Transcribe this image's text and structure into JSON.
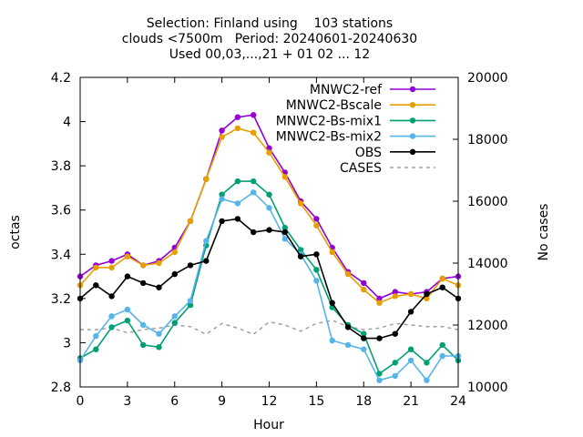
{
  "title_lines": [
    "Selection: Finland using    103 stations",
    "clouds <7500m   Period: 20240601-20240630",
    "Used 00,03,...,21 + 01 02 ... 12"
  ],
  "chart_data": {
    "type": "line",
    "xlabel": "Hour",
    "ylabel": "octas",
    "y2label": "No cases",
    "xlim": [
      0,
      24
    ],
    "ylim": [
      2.8,
      4.2
    ],
    "y2lim": [
      10000,
      20000
    ],
    "xticks": [
      "0",
      "3",
      "6",
      "9",
      "12",
      "15",
      "18",
      "21",
      "24"
    ],
    "yticks": [
      "2.8",
      "3",
      "3.2",
      "3.4",
      "3.6",
      "3.8",
      "4",
      "4.2"
    ],
    "y2ticks": [
      "10000",
      "12000",
      "14000",
      "16000",
      "18000",
      "20000"
    ],
    "grid": false,
    "legend_position": "top-right",
    "x": [
      0,
      1,
      2,
      3,
      4,
      5,
      6,
      7,
      8,
      9,
      10,
      11,
      12,
      13,
      14,
      15,
      16,
      17,
      18,
      19,
      20,
      21,
      22,
      23,
      24
    ],
    "series": [
      {
        "name": "MNWC2-ref",
        "color": "#9400d3",
        "marker": "filled-circle",
        "values": [
          3.3,
          3.35,
          3.37,
          3.4,
          3.35,
          3.37,
          3.43,
          3.55,
          3.74,
          3.96,
          4.02,
          4.03,
          3.88,
          3.77,
          3.64,
          3.56,
          3.43,
          3.32,
          3.27,
          3.2,
          3.23,
          3.22,
          3.23,
          3.29,
          3.3
        ]
      },
      {
        "name": "MNWC2-Bscale",
        "color": "#e69f00",
        "marker": "filled-circle",
        "values": [
          3.26,
          3.34,
          3.34,
          3.39,
          3.35,
          3.36,
          3.41,
          3.55,
          3.74,
          3.93,
          3.97,
          3.95,
          3.86,
          3.75,
          3.63,
          3.53,
          3.41,
          3.31,
          3.24,
          3.18,
          3.21,
          3.22,
          3.2,
          3.29,
          3.26
        ]
      },
      {
        "name": "MNWC2-Bs-mix1",
        "color": "#009e73",
        "marker": "filled-circle",
        "values": [
          2.93,
          2.97,
          3.07,
          3.1,
          2.99,
          2.98,
          3.09,
          3.17,
          3.44,
          3.67,
          3.73,
          3.73,
          3.67,
          3.52,
          3.42,
          3.33,
          3.16,
          3.08,
          3.04,
          2.86,
          2.91,
          2.97,
          2.91,
          2.99,
          2.92
        ]
      },
      {
        "name": "MNWC2-Bs-mix2",
        "color": "#56b4e9",
        "marker": "filled-circle",
        "values": [
          2.92,
          3.03,
          3.12,
          3.15,
          3.08,
          3.04,
          3.12,
          3.19,
          3.46,
          3.65,
          3.63,
          3.68,
          3.61,
          3.47,
          3.4,
          3.28,
          3.01,
          2.99,
          2.97,
          2.83,
          2.85,
          2.92,
          2.83,
          2.94,
          2.94
        ]
      },
      {
        "name": "OBS",
        "color": "#000000",
        "marker": "filled-circle",
        "values": [
          3.2,
          3.26,
          3.21,
          3.3,
          3.27,
          3.25,
          3.31,
          3.35,
          3.37,
          3.55,
          3.56,
          3.5,
          3.51,
          3.5,
          3.39,
          3.4,
          3.18,
          3.07,
          3.02,
          3.02,
          3.04,
          3.14,
          3.22,
          3.25,
          3.2
        ]
      },
      {
        "name": "CASES",
        "color": "#a0a0a0",
        "marker": "none",
        "dashed": true,
        "axis": "y2",
        "values": [
          11850,
          11850,
          11900,
          11750,
          11850,
          11900,
          12000,
          11950,
          11700,
          12050,
          11900,
          11700,
          12100,
          12000,
          11800,
          12050,
          12150,
          11950,
          11850,
          11900,
          12050,
          12000,
          11950,
          11950,
          11850
        ]
      }
    ]
  }
}
